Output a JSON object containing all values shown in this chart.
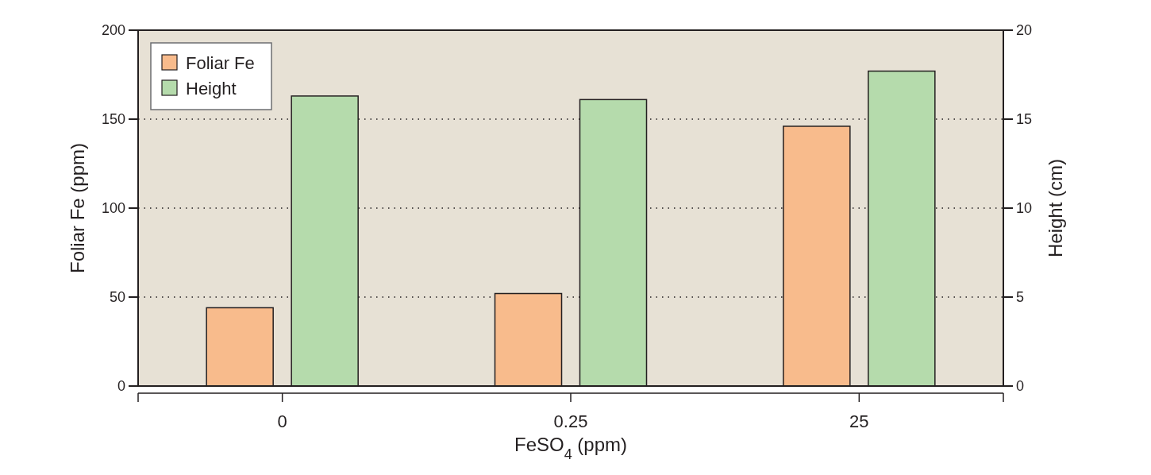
{
  "chart_data": {
    "type": "bar",
    "xlabel": "FeSO$_{4}$ (ppm)",
    "ylabel": "Foliar Fe (ppm)",
    "y2label": "Height (cm)",
    "categories": [
      "0",
      "0.25",
      "25"
    ],
    "series": [
      {
        "name": "Foliar Fe",
        "color": "#f8bb8c",
        "values": [
          44,
          52,
          146
        ]
      },
      {
        "name": "Height",
        "color": "#b5dbac",
        "values": [
          16.3,
          16.1,
          17.7
        ],
        "axis": "y2"
      }
    ],
    "ylim": [
      0,
      200
    ],
    "yticks": [
      0,
      50,
      100,
      150,
      200
    ],
    "y2lim": [
      0,
      20
    ],
    "y2ticks": [
      0,
      5,
      10,
      15,
      20
    ],
    "grid": "y",
    "legend": "top left"
  }
}
